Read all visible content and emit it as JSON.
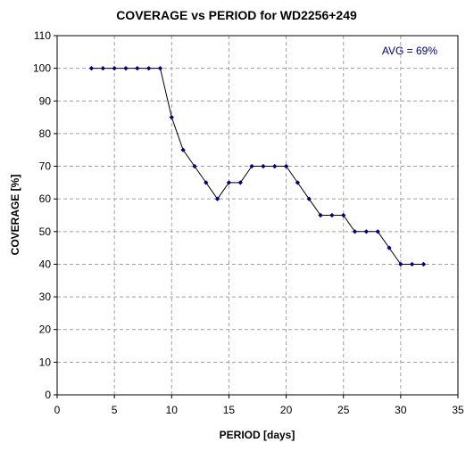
{
  "chart_data": {
    "type": "line",
    "title": "COVERAGE vs PERIOD for WD2256+249",
    "xlabel": "PERIOD [days]",
    "ylabel": "COVERAGE [%]",
    "xlim": [
      0,
      35
    ],
    "ylim": [
      0,
      110
    ],
    "xticks": [
      0,
      5,
      10,
      15,
      20,
      25,
      30,
      35
    ],
    "yticks": [
      0,
      10,
      20,
      30,
      40,
      50,
      60,
      70,
      80,
      90,
      100,
      110
    ],
    "grid": true,
    "annotation": "AVG = 69%",
    "series": [
      {
        "x": [
          3,
          4,
          5,
          6,
          7,
          8,
          9,
          10,
          11,
          12,
          13,
          14,
          15,
          16,
          17,
          18,
          19,
          20,
          21,
          22,
          23,
          24,
          25,
          26,
          27,
          28,
          29,
          30,
          31,
          32
        ],
        "y": [
          100,
          100,
          100,
          100,
          100,
          100,
          100,
          85,
          75,
          70,
          65,
          60,
          65,
          65,
          70,
          70,
          70,
          70,
          65,
          60,
          55,
          55,
          55,
          50,
          50,
          50,
          45,
          40,
          40,
          40
        ]
      }
    ],
    "colors": {
      "line": "#000000",
      "marker": "#000080",
      "grid": "#a0a0a0",
      "annotation": "#000080"
    }
  }
}
